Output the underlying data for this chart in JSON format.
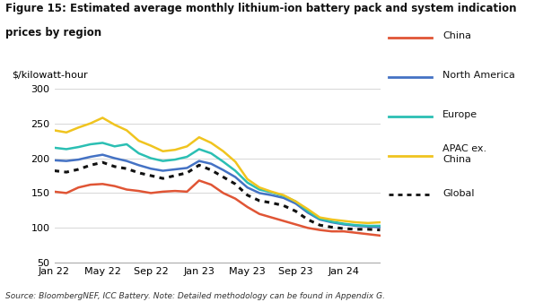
{
  "title_line1": "Figure 15: Estimated average monthly lithium-ion battery pack and system indication",
  "title_line2": "prices by region",
  "ylabel": "$/kilowatt-hour",
  "source": "Source: BloombergNEF, ICC Battery. Note: Detailed methodology can be found in Appendix G.",
  "x_labels": [
    "Jan 22",
    "May 22",
    "Sep 22",
    "Jan 23",
    "May 23",
    "Sep 23",
    "Jan 24"
  ],
  "x_tick_pos": [
    0,
    4,
    8,
    12,
    16,
    20,
    24
  ],
  "xlim": [
    0,
    27
  ],
  "ylim": [
    50,
    310
  ],
  "yticks": [
    50,
    100,
    150,
    200,
    250,
    300
  ],
  "series": {
    "China": {
      "color": "#e05535",
      "linestyle": "solid",
      "linewidth": 1.8,
      "data": [
        152,
        150,
        158,
        162,
        163,
        160,
        155,
        153,
        150,
        152,
        153,
        152,
        168,
        162,
        150,
        142,
        130,
        120,
        115,
        110,
        105,
        100,
        97,
        95,
        95,
        93,
        91,
        89
      ]
    },
    "North America": {
      "color": "#4472c4",
      "linestyle": "solid",
      "linewidth": 1.8,
      "data": [
        197,
        196,
        198,
        202,
        205,
        200,
        196,
        190,
        185,
        182,
        184,
        186,
        196,
        192,
        183,
        173,
        158,
        150,
        147,
        143,
        135,
        122,
        112,
        108,
        105,
        103,
        102,
        101
      ]
    },
    "Europe": {
      "color": "#2bbfb3",
      "linestyle": "solid",
      "linewidth": 1.8,
      "data": [
        215,
        213,
        216,
        220,
        222,
        217,
        220,
        207,
        200,
        196,
        198,
        202,
        213,
        207,
        195,
        182,
        165,
        155,
        151,
        146,
        138,
        124,
        113,
        109,
        106,
        104,
        103,
        103
      ]
    },
    "APAC ex. China": {
      "color": "#f0c41f",
      "linestyle": "solid",
      "linewidth": 1.8,
      "data": [
        240,
        237,
        244,
        250,
        258,
        248,
        240,
        225,
        218,
        210,
        212,
        217,
        230,
        222,
        210,
        195,
        170,
        158,
        152,
        147,
        138,
        127,
        115,
        112,
        110,
        108,
        107,
        108
      ]
    },
    "Global": {
      "color": "#111111",
      "linestyle": "dotted",
      "linewidth": 2.2,
      "data": [
        182,
        180,
        184,
        190,
        194,
        188,
        185,
        179,
        175,
        171,
        175,
        179,
        190,
        183,
        173,
        163,
        147,
        139,
        136,
        132,
        124,
        112,
        104,
        101,
        99,
        98,
        98,
        97
      ]
    }
  },
  "n_points": 28,
  "legend_order": [
    "China",
    "North America",
    "Europe",
    "APAC ex. China",
    "Global"
  ],
  "legend_labels_display": [
    "China",
    "North America",
    "Europe",
    "APAC ex.\nChina",
    "Global"
  ]
}
